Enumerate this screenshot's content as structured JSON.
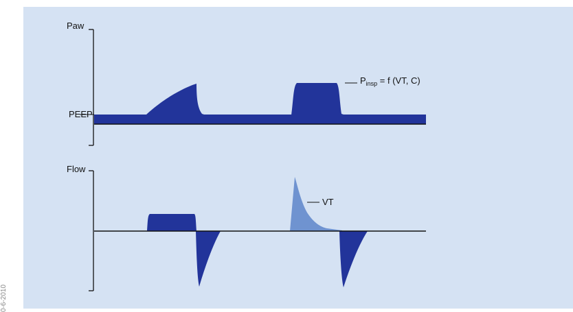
{
  "side_code": "0-6-2010",
  "top_chart": {
    "axis_label": "Paw",
    "peep_label": "PEEP",
    "annotation": {
      "main": "P",
      "subscript": "insp",
      "suffix": " = f (VT, C)"
    }
  },
  "bottom_chart": {
    "axis_label": "Flow",
    "annotation": "VT"
  },
  "colors": {
    "panel": "#d5e2f3",
    "waveform": "#22349a",
    "volume_fill": "#6f93d0",
    "axis": "#111111"
  }
}
